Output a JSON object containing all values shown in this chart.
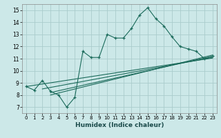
{
  "xlabel": "Humidex (Indice chaleur)",
  "bg_color": "#cce8e8",
  "grid_color": "#aacccc",
  "line_color": "#1a6a5a",
  "xlim": [
    -0.5,
    23.5
  ],
  "ylim": [
    6.5,
    15.5
  ],
  "xticks": [
    0,
    1,
    2,
    3,
    4,
    5,
    6,
    7,
    8,
    9,
    10,
    11,
    12,
    13,
    14,
    15,
    16,
    17,
    18,
    19,
    20,
    21,
    22,
    23
  ],
  "yticks": [
    7,
    8,
    9,
    10,
    11,
    12,
    13,
    14,
    15
  ],
  "main_x": [
    0,
    1,
    2,
    3,
    4,
    5,
    6,
    7,
    8,
    9,
    10,
    11,
    12,
    13,
    14,
    15,
    16,
    17,
    18,
    19,
    20,
    21,
    22,
    23
  ],
  "main_y": [
    8.7,
    8.4,
    9.2,
    8.3,
    8.0,
    7.0,
    7.8,
    11.6,
    11.1,
    11.1,
    13.0,
    12.7,
    12.7,
    13.5,
    14.6,
    15.2,
    14.3,
    13.7,
    12.8,
    12.0,
    11.8,
    11.6,
    11.0,
    11.2
  ],
  "trend_lines": [
    {
      "x0": 0,
      "y0": 8.7,
      "x1": 23,
      "y1": 11.05
    },
    {
      "x0": 2,
      "y0": 8.5,
      "x1": 23,
      "y1": 11.1
    },
    {
      "x0": 3,
      "y0": 8.2,
      "x1": 23,
      "y1": 11.2
    },
    {
      "x0": 3,
      "y0": 8.0,
      "x1": 23,
      "y1": 11.3
    }
  ]
}
